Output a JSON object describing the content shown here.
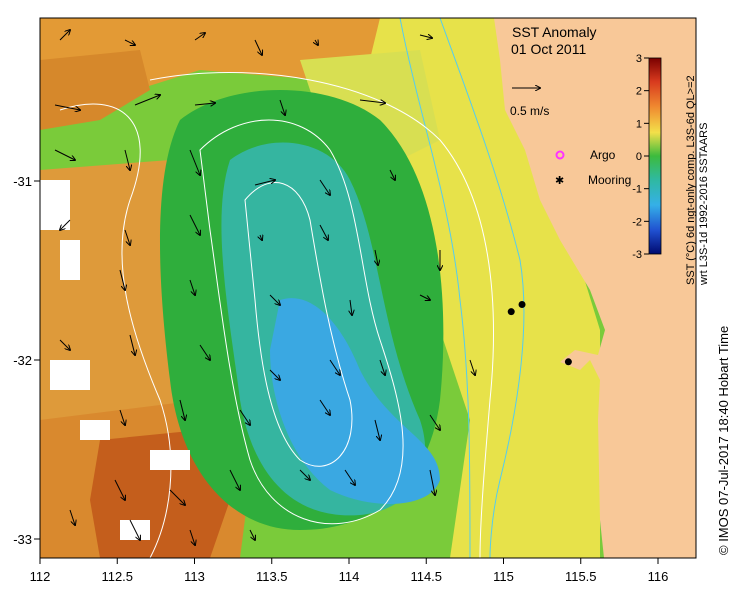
{
  "title": "SST Anomaly",
  "date": "01 Oct 2011",
  "scale_label": "0.5 m/s",
  "legend": {
    "argo": "Argo",
    "mooring": "Mooring"
  },
  "colorbar": {
    "label_line1": "SST (°C) 6d ngt-only comp. L3S-6d QL>=2",
    "label_line2": "wrt L3S-1d 1992-2016 SSTAARS",
    "ticks": [
      "3",
      "2",
      "1",
      "0",
      "-1",
      "-2",
      "-3"
    ],
    "range": [
      -3,
      3
    ]
  },
  "credit": "© IMOS 07-Jul-2017 18:40 Hobart Time",
  "axes": {
    "x_ticks": [
      "112",
      "112.5",
      "113",
      "113.5",
      "114",
      "114.5",
      "115",
      "115.5",
      "116"
    ],
    "y_ticks": [
      "-31",
      "-32",
      "-33"
    ]
  },
  "moorings": [
    {
      "lon": 115.05,
      "lat": -31.73
    },
    {
      "lon": 115.12,
      "lat": -31.69
    },
    {
      "lon": 115.42,
      "lat": -32.01
    }
  ],
  "colors": {
    "land": "#f8c898",
    "anomaly_warm": "#e08a2a",
    "anomaly_neutral": "#3dbb3d",
    "anomaly_cool": "#3aaee0",
    "current_vector": "#000000",
    "contour": "#ffffff",
    "isobath": "#55ccee",
    "argo_marker": "#ff33ff"
  }
}
